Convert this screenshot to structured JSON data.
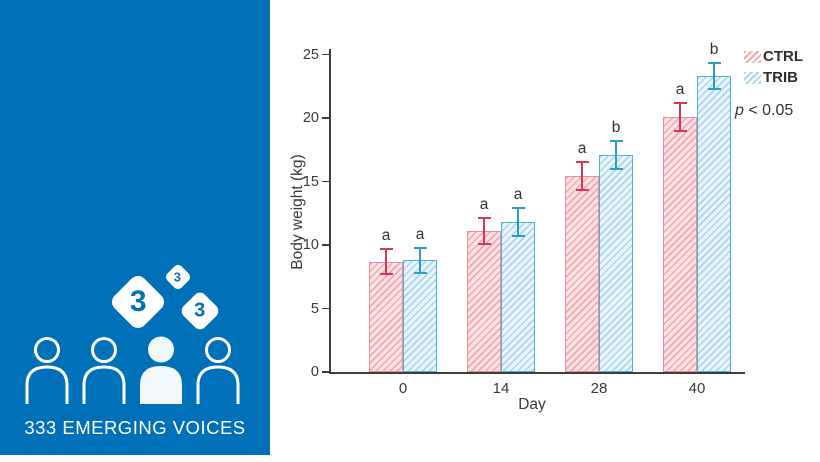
{
  "branding": {
    "panel_color": "#0070b8",
    "logo_text": "333 EMERGING VOICES",
    "logo_diamond_digits": [
      "3",
      "3",
      "3"
    ]
  },
  "chart_data": {
    "type": "bar",
    "title": "",
    "xlabel": "Day",
    "ylabel": "Body weight (kg)",
    "categories": [
      "0",
      "14",
      "28",
      "40"
    ],
    "ylim": [
      0,
      25
    ],
    "yticks": [
      0,
      5,
      10,
      15,
      20,
      25
    ],
    "grid": false,
    "legend_position": "top-right",
    "annotation_p": "p",
    "annotation_rest": " < 0.05",
    "series": [
      {
        "name": "CTRL",
        "values": [
          8.7,
          11.1,
          15.4,
          20.1
        ],
        "errors": [
          1.0,
          1.0,
          1.1,
          1.1
        ],
        "sig_letters": [
          "a",
          "a",
          "a",
          "a"
        ],
        "fill": "#fbe2e5",
        "hatch": "#f3a7b1",
        "edge": "#ee8d99",
        "error_color": "#d13a52"
      },
      {
        "name": "TRIB",
        "values": [
          8.8,
          11.8,
          17.1,
          23.3
        ],
        "errors": [
          1.0,
          1.1,
          1.1,
          1.0
        ],
        "sig_letters": [
          "a",
          "a",
          "b",
          "b"
        ],
        "fill": "#eaf4fa",
        "hatch": "#a8d7ec",
        "edge": "#4ab5d9",
        "error_color": "#2b9dc4"
      }
    ]
  }
}
